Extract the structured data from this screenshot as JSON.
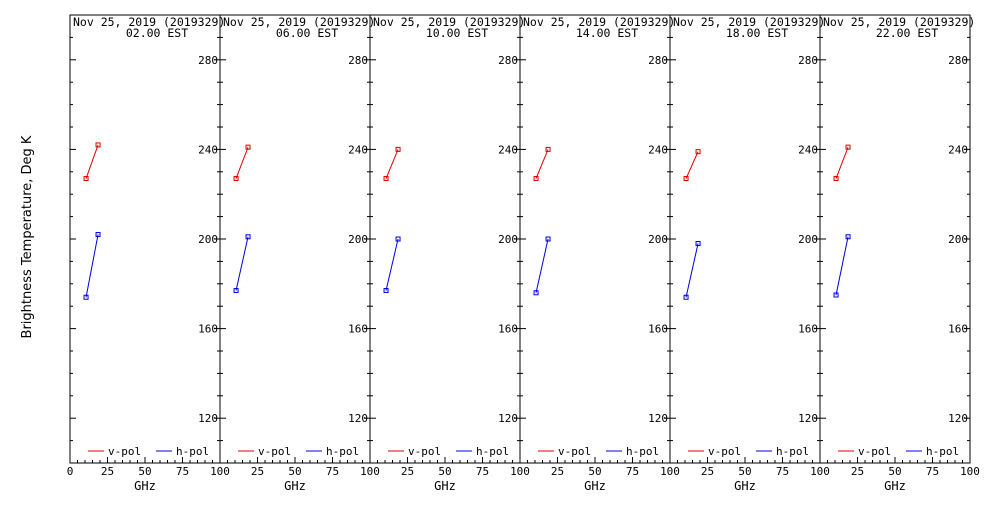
{
  "page": {
    "ylabel": "Brightness Temperature, Deg K",
    "colors": {
      "v_pol": "#dd0000",
      "h_pol": "#0000dd",
      "axis": "#000000",
      "background": "#ffffff"
    }
  },
  "chart_data": [
    {
      "type": "line",
      "title": "Nov 25, 2019 (2019329)",
      "subtitle": "02.00 EST",
      "xlabel": "GHz",
      "ylabel": "Brightness Temperature, Deg K",
      "xlim": [
        0,
        100
      ],
      "ylim": [
        100,
        295
      ],
      "xticks": [
        "0",
        "25",
        "50",
        "75",
        "100"
      ],
      "yticks": [
        "120",
        "160",
        "200",
        "240",
        "280"
      ],
      "legend": "bottom",
      "series": [
        {
          "name": "v-pol",
          "color": "#dd0000",
          "x": [
            10.7,
            18.7
          ],
          "y": [
            227,
            242
          ]
        },
        {
          "name": "h-pol",
          "color": "#0000dd",
          "x": [
            10.7,
            18.7
          ],
          "y": [
            174,
            202
          ]
        }
      ]
    },
    {
      "type": "line",
      "title": "Nov 25, 2019 (2019329)",
      "subtitle": "06.00 EST",
      "xlabel": "GHz",
      "xlim": [
        0,
        100
      ],
      "ylim": [
        100,
        295
      ],
      "xticks": [
        "0",
        "25",
        "50",
        "75",
        "100"
      ],
      "yticks": [
        "120",
        "160",
        "200",
        "240",
        "280"
      ],
      "legend": "bottom",
      "series": [
        {
          "name": "v-pol",
          "color": "#dd0000",
          "x": [
            10.7,
            18.7
          ],
          "y": [
            227,
            241
          ]
        },
        {
          "name": "h-pol",
          "color": "#0000dd",
          "x": [
            10.7,
            18.7
          ],
          "y": [
            177,
            201
          ]
        }
      ]
    },
    {
      "type": "line",
      "title": "Nov 25, 2019 (2019329)",
      "subtitle": "10.00 EST",
      "xlabel": "GHz",
      "xlim": [
        0,
        100
      ],
      "ylim": [
        100,
        295
      ],
      "xticks": [
        "0",
        "25",
        "50",
        "75",
        "100"
      ],
      "yticks": [
        "120",
        "160",
        "200",
        "240",
        "280"
      ],
      "legend": "bottom",
      "series": [
        {
          "name": "v-pol",
          "color": "#dd0000",
          "x": [
            10.7,
            18.7
          ],
          "y": [
            227,
            240
          ]
        },
        {
          "name": "h-pol",
          "color": "#0000dd",
          "x": [
            10.7,
            18.7
          ],
          "y": [
            177,
            200
          ]
        }
      ]
    },
    {
      "type": "line",
      "title": "Nov 25, 2019 (2019329)",
      "subtitle": "14.00 EST",
      "xlabel": "GHz",
      "xlim": [
        0,
        100
      ],
      "ylim": [
        100,
        295
      ],
      "xticks": [
        "0",
        "25",
        "50",
        "75",
        "100"
      ],
      "yticks": [
        "120",
        "160",
        "200",
        "240",
        "280"
      ],
      "legend": "bottom",
      "series": [
        {
          "name": "v-pol",
          "color": "#dd0000",
          "x": [
            10.7,
            18.7
          ],
          "y": [
            227,
            240
          ]
        },
        {
          "name": "h-pol",
          "color": "#0000dd",
          "x": [
            10.7,
            18.7
          ],
          "y": [
            176,
            200
          ]
        }
      ]
    },
    {
      "type": "line",
      "title": "Nov 25, 2019 (2019329)",
      "subtitle": "18.00 EST",
      "xlabel": "GHz",
      "xlim": [
        0,
        100
      ],
      "ylim": [
        100,
        295
      ],
      "xticks": [
        "0",
        "25",
        "50",
        "75",
        "100"
      ],
      "yticks": [
        "120",
        "160",
        "200",
        "240",
        "280"
      ],
      "legend": "bottom",
      "series": [
        {
          "name": "v-pol",
          "color": "#dd0000",
          "x": [
            10.7,
            18.7
          ],
          "y": [
            227,
            239
          ]
        },
        {
          "name": "h-pol",
          "color": "#0000dd",
          "x": [
            10.7,
            18.7
          ],
          "y": [
            174,
            198
          ]
        }
      ]
    },
    {
      "type": "line",
      "title": "Nov 25, 2019 (2019329)",
      "subtitle": "22.00 EST",
      "xlabel": "GHz",
      "xlim": [
        0,
        100
      ],
      "ylim": [
        100,
        295
      ],
      "xticks": [
        "0",
        "25",
        "50",
        "75",
        "100"
      ],
      "yticks": [
        "120",
        "160",
        "200",
        "240",
        "280"
      ],
      "legend": "bottom",
      "series": [
        {
          "name": "v-pol",
          "color": "#dd0000",
          "x": [
            10.7,
            18.7
          ],
          "y": [
            227,
            241
          ]
        },
        {
          "name": "h-pol",
          "color": "#0000dd",
          "x": [
            10.7,
            18.7
          ],
          "y": [
            175,
            201
          ]
        }
      ]
    }
  ]
}
